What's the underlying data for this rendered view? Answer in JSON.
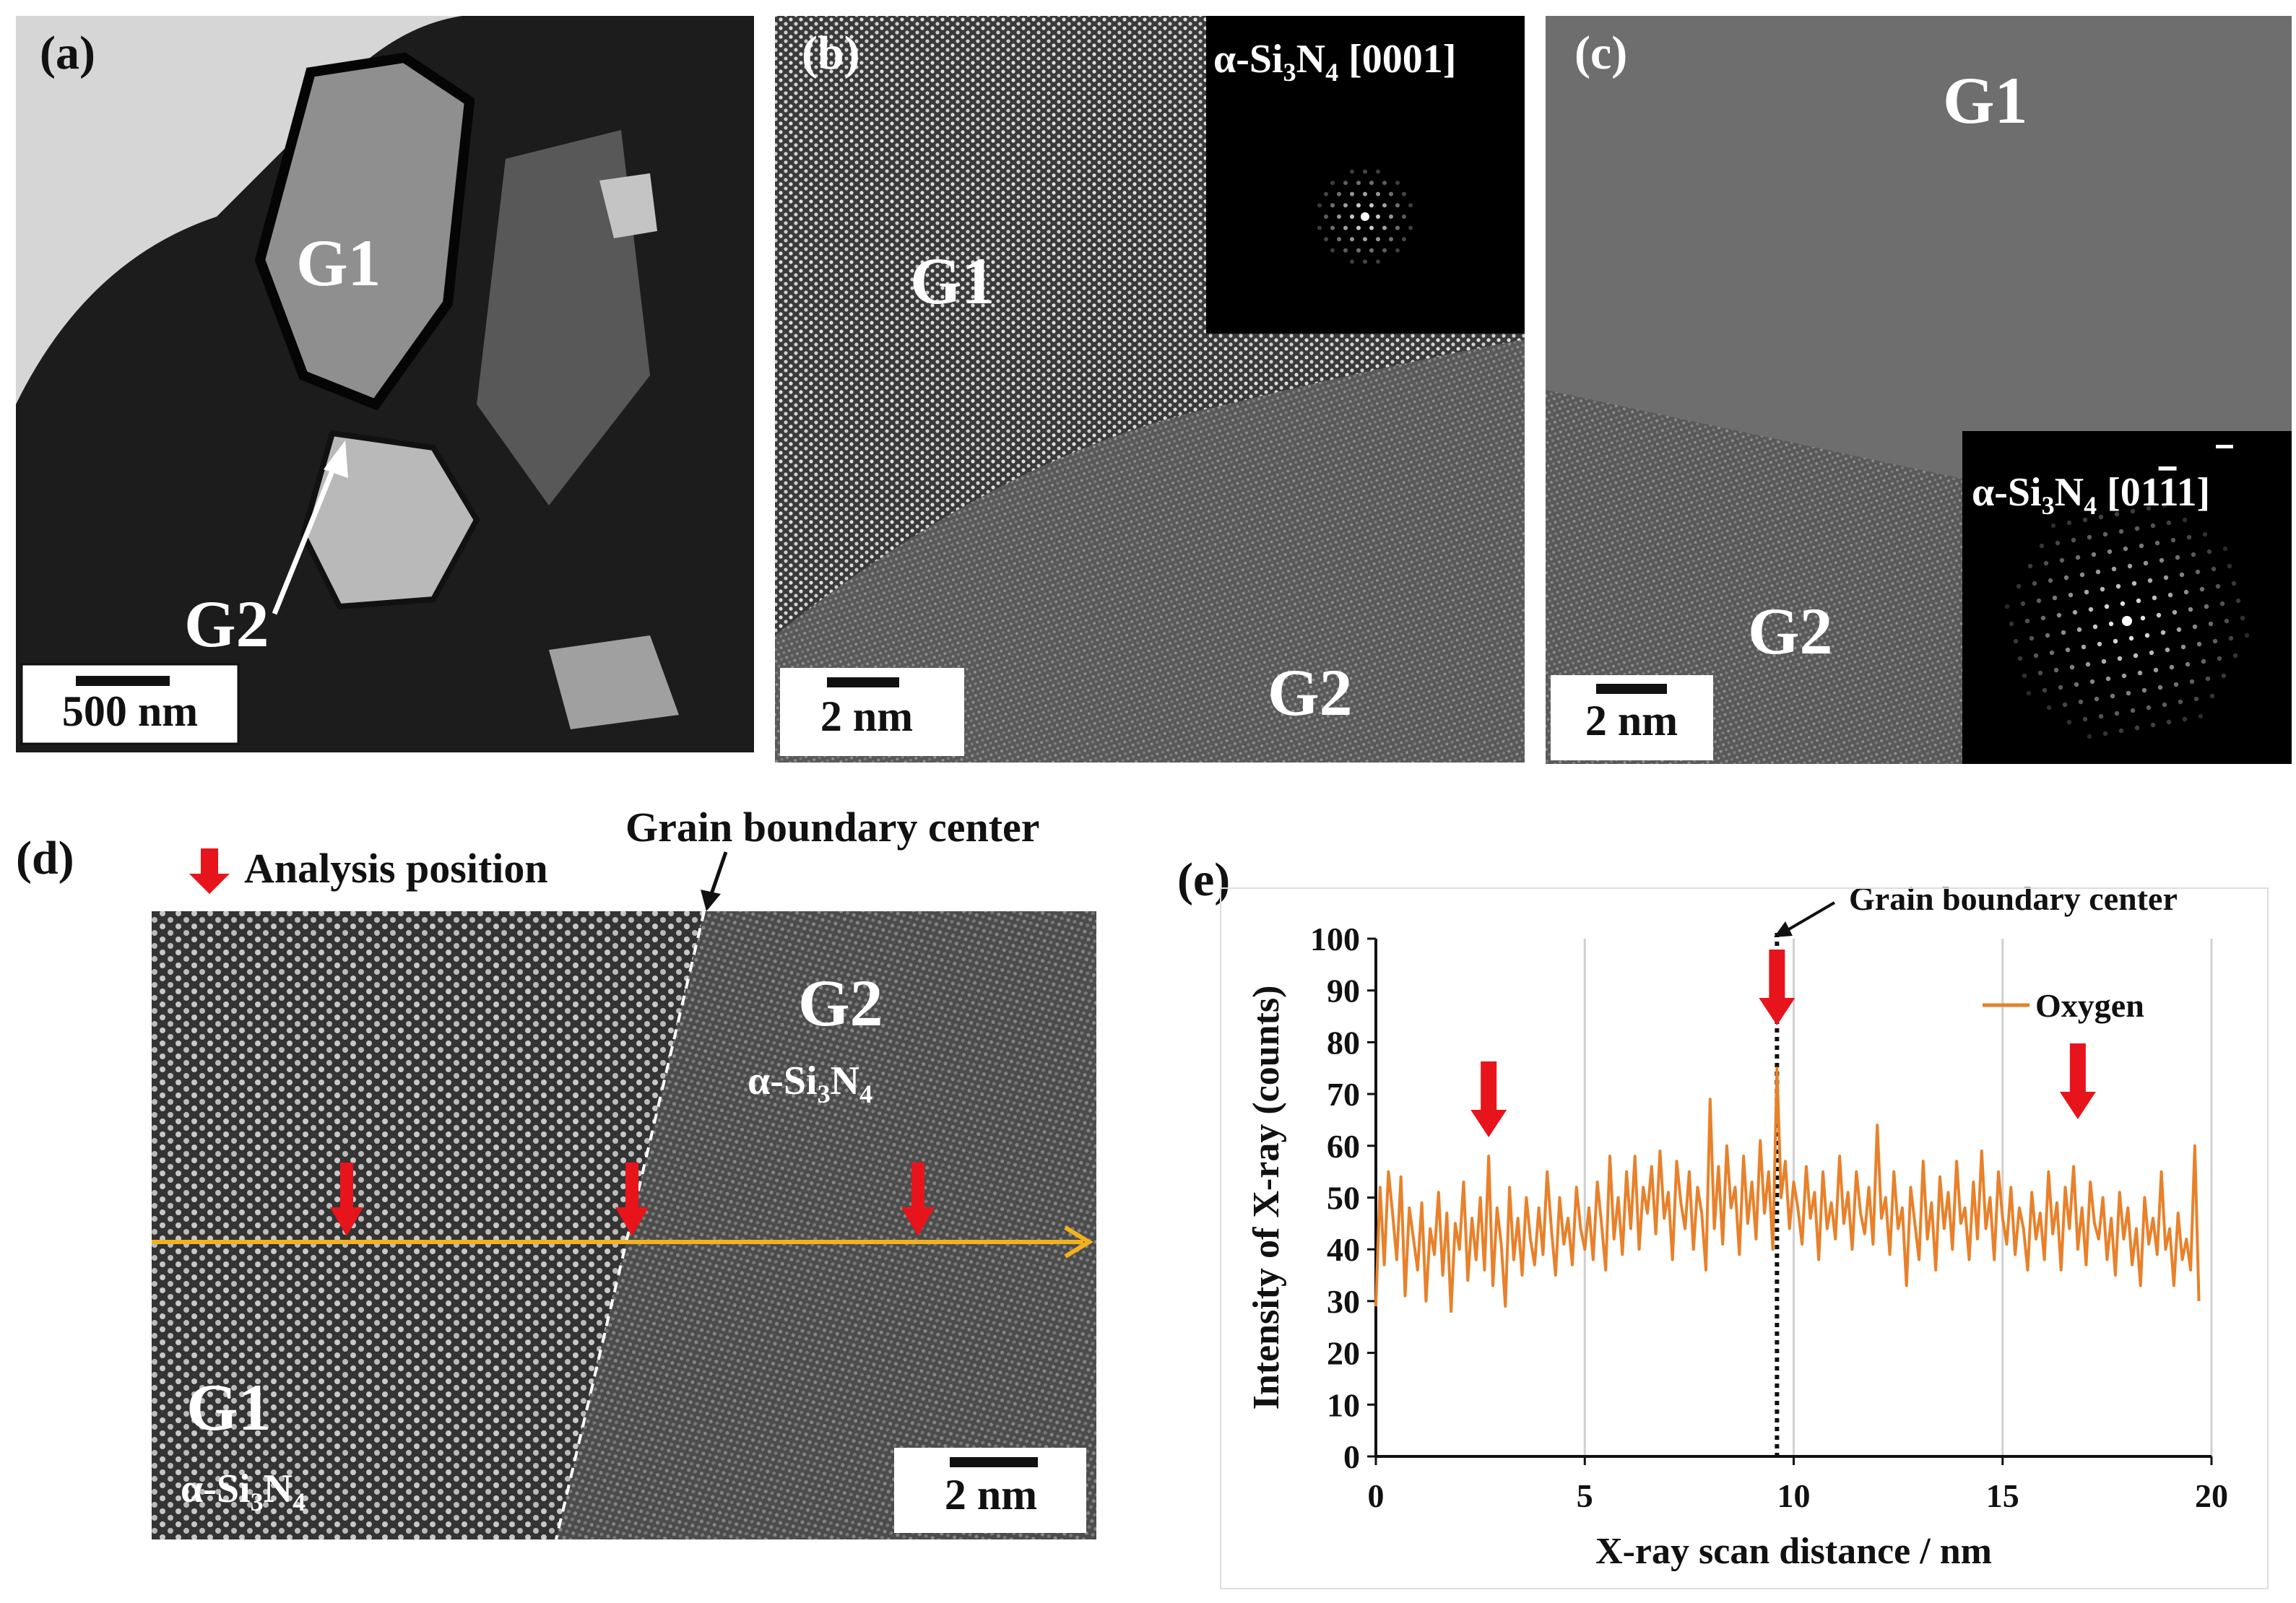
{
  "panels": {
    "a": {
      "label": "(a)",
      "g1": "G1",
      "g2": "G2",
      "scale": "500 nm"
    },
    "b": {
      "label": "(b)",
      "g1": "G1",
      "g2": "G2",
      "scale": "2 nm",
      "zone_axis": {
        "alpha": "α-Si",
        "sub1": "3",
        "mid": "N",
        "sub2": "4",
        "tail": " [0001]"
      }
    },
    "c": {
      "label": "(c)",
      "g1": "G1",
      "g2": "G2",
      "scale": "2 nm",
      "zone_axis": {
        "alpha": "α-Si",
        "sub1": "3",
        "mid": "N",
        "sub2": "4",
        "tail": " [01",
        "bar": "1",
        "end": "1]"
      }
    },
    "d": {
      "label": "(d)",
      "legend": "Analysis position",
      "gb_label": "Grain boundary center",
      "g2": "G2",
      "g2_phase": {
        "alpha": "α-Si",
        "sub1": "3",
        "mid": "N",
        "sub2": "4"
      },
      "g1": "G1",
      "g1_phase": {
        "alpha": "α-Si",
        "sub1": "3",
        "mid": "N",
        "sub2": "4"
      },
      "scale": "2 nm"
    },
    "e": {
      "label": "(e)",
      "gb_label": "Grain boundary center"
    }
  },
  "colors": {
    "arrow_red": "#e8141c",
    "scan_line": "#f2b21c",
    "oxygen": "#e8812a"
  },
  "chart_data": {
    "type": "line",
    "title": "",
    "xlabel": "X-ray scan distance / nm",
    "ylabel": "Intensity of X-ray  (counts)",
    "xlim": [
      0,
      20
    ],
    "ylim": [
      0,
      100
    ],
    "xticks": [
      0,
      5,
      10,
      15,
      20
    ],
    "yticks": [
      0,
      10,
      20,
      30,
      40,
      50,
      60,
      70,
      80,
      90,
      100
    ],
    "grid": "vertical",
    "legend": "top-right",
    "grain_boundary_center_x": 9.6,
    "analysis_positions_x": [
      2.7,
      9.6,
      16.8
    ],
    "series": [
      {
        "name": "Oxygen",
        "x": [
          0.0,
          0.1,
          0.2,
          0.3,
          0.4,
          0.5,
          0.6,
          0.7,
          0.8,
          0.9,
          1.0,
          1.1,
          1.2,
          1.3,
          1.4,
          1.5,
          1.6,
          1.7,
          1.8,
          1.9,
          2.0,
          2.1,
          2.2,
          2.3,
          2.4,
          2.5,
          2.6,
          2.7,
          2.8,
          2.9,
          3.0,
          3.1,
          3.2,
          3.3,
          3.4,
          3.5,
          3.6,
          3.7,
          3.8,
          3.9,
          4.0,
          4.1,
          4.2,
          4.3,
          4.4,
          4.5,
          4.6,
          4.7,
          4.8,
          4.9,
          5.0,
          5.1,
          5.2,
          5.3,
          5.4,
          5.5,
          5.6,
          5.7,
          5.8,
          5.9,
          6.0,
          6.1,
          6.2,
          6.3,
          6.4,
          6.5,
          6.6,
          6.7,
          6.8,
          6.9,
          7.0,
          7.1,
          7.2,
          7.3,
          7.4,
          7.5,
          7.6,
          7.7,
          7.8,
          7.9,
          8.0,
          8.1,
          8.2,
          8.3,
          8.4,
          8.5,
          8.6,
          8.7,
          8.8,
          8.9,
          9.0,
          9.1,
          9.2,
          9.3,
          9.4,
          9.5,
          9.6,
          9.7,
          9.8,
          9.9,
          10.0,
          10.1,
          10.2,
          10.3,
          10.4,
          10.5,
          10.6,
          10.7,
          10.8,
          10.9,
          11.0,
          11.1,
          11.2,
          11.3,
          11.4,
          11.5,
          11.6,
          11.7,
          11.8,
          11.9,
          12.0,
          12.1,
          12.2,
          12.3,
          12.4,
          12.5,
          12.6,
          12.7,
          12.8,
          12.9,
          13.0,
          13.1,
          13.2,
          13.3,
          13.4,
          13.5,
          13.6,
          13.7,
          13.8,
          13.9,
          14.0,
          14.1,
          14.2,
          14.3,
          14.4,
          14.5,
          14.6,
          14.7,
          14.8,
          14.9,
          15.0,
          15.1,
          15.2,
          15.3,
          15.4,
          15.5,
          15.6,
          15.7,
          15.8,
          15.9,
          16.0,
          16.1,
          16.2,
          16.3,
          16.4,
          16.5,
          16.6,
          16.7,
          16.8,
          16.9,
          17.0,
          17.1,
          17.2,
          17.3,
          17.4,
          17.5,
          17.6,
          17.7,
          17.8,
          17.9,
          18.0,
          18.1,
          18.2,
          18.3,
          18.4,
          18.5,
          18.6,
          18.7,
          18.8,
          18.9,
          19.0,
          19.1,
          19.2,
          19.3,
          19.4,
          19.5,
          19.6,
          19.7
        ],
        "y": [
          29,
          52,
          37,
          55,
          47,
          38,
          54,
          31,
          48,
          42,
          36,
          49,
          30,
          44,
          39,
          51,
          35,
          47,
          28,
          45,
          40,
          53,
          34,
          46,
          38,
          50,
          36,
          58,
          33,
          48,
          41,
          29,
          52,
          38,
          46,
          35,
          50,
          42,
          37,
          48,
          39,
          55,
          44,
          35,
          50,
          41,
          46,
          37,
          52,
          44,
          40,
          48,
          38,
          53,
          45,
          36,
          58,
          42,
          50,
          39,
          55,
          44,
          58,
          40,
          52,
          47,
          56,
          43,
          59,
          46,
          51,
          38,
          57,
          49,
          44,
          55,
          40,
          52,
          47,
          36,
          69,
          44,
          56,
          41,
          60,
          48,
          52,
          39,
          58,
          45,
          53,
          42,
          61,
          47,
          55,
          40,
          75,
          50,
          57,
          44,
          53,
          48,
          41,
          56,
          46,
          51,
          38,
          55,
          44,
          49,
          42,
          58,
          45,
          51,
          40,
          55,
          47,
          43,
          52,
          41,
          64,
          46,
          50,
          39,
          55,
          44,
          48,
          33,
          52,
          45,
          38,
          57,
          42,
          49,
          36,
          54,
          44,
          51,
          40,
          57,
          45,
          48,
          38,
          53,
          42,
          59,
          44,
          50,
          38,
          55,
          46,
          41,
          52,
          39,
          48,
          44,
          36,
          51,
          42,
          47,
          38,
          55,
          43,
          49,
          36,
          52,
          44,
          56,
          40,
          48,
          37,
          53,
          45,
          42,
          50,
          38,
          46,
          35,
          51,
          42,
          48,
          37,
          44,
          33,
          50,
          41,
          46,
          39,
          55,
          40,
          44,
          33,
          47,
          38,
          42,
          36,
          60,
          30
        ]
      }
    ]
  }
}
